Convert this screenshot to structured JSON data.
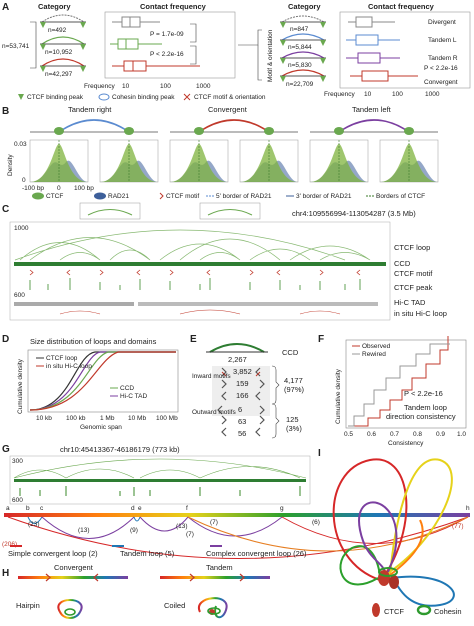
{
  "panelA": {
    "label": "A",
    "category": "Category",
    "contactFrequency": "Contact frequency",
    "total": "n=53,741",
    "counts": [
      "n=492",
      "n=10,952",
      "n=42,297"
    ],
    "pvalues": [
      "P = 1.7e-09",
      "P < 2.2e-16"
    ],
    "axisTitle": "Frequency",
    "ticks": [
      "10",
      "100",
      "1000"
    ],
    "right": {
      "axisLabel": "Motif & orientation",
      "category": "Category",
      "contactFrequency": "Contact frequency",
      "counts": [
        "n=847",
        "n=5,844",
        "n=5,830",
        "n=22,709"
      ],
      "classes": [
        "Divergent",
        "Tandem L",
        "Tandem R",
        "Convergent"
      ],
      "pvalue": "P < 2.2e-16",
      "axisTitle": "Frequency",
      "ticks": [
        "10",
        "100",
        "1000"
      ]
    },
    "legend": [
      "CTCF binding peak",
      "Cohesin binding peak",
      "CTCF motif & orientation"
    ]
  },
  "panelB": {
    "label": "B",
    "titles": [
      "Tandem right",
      "Convergent",
      "Tandem left"
    ],
    "yAxis": "Density",
    "yticks": [
      "0.03",
      "0"
    ],
    "xticks": [
      "-100 bp",
      "0",
      "100 bp"
    ],
    "legend": [
      "CTCF",
      "RAD21",
      "CTCF motif",
      "5' border of RAD21",
      "3' border of RAD21",
      "Borders of CTCF"
    ]
  },
  "panelC": {
    "label": "C",
    "region": "chr4:109556994-113054287 (3.5 Mb)",
    "scaleTop": "1000",
    "scaleBottom": "600",
    "tracks": [
      "CTCF loop",
      "CCD",
      "CTCF motif",
      "CTCF peak",
      "Hi-C TAD",
      "in situ Hi-C loop"
    ]
  },
  "panelD": {
    "label": "D",
    "title": "Size distribution of loops and domains",
    "yAxis": "Cumulative density",
    "xAxis": "Genomic span",
    "xticks": [
      "10 kb",
      "100 kb",
      "1 Mb",
      "10 Mb",
      "100 Mb"
    ],
    "legend": [
      "CTCF loop",
      "in situ Hi-C loop",
      "CCD",
      "Hi-C TAD"
    ]
  },
  "panelE": {
    "label": "E",
    "ccd": "CCD",
    "ccdCount": "2,267",
    "inward": "Inward motifs",
    "inwardCounts": [
      "3,852",
      "159",
      "166"
    ],
    "inwardTotal": "4,177",
    "inwardPct": "(97%)",
    "outward": "Outward motifs",
    "outwardCounts": [
      "6",
      "63",
      "56"
    ],
    "outwardTotal": "125",
    "outwardPct": "(3%)"
  },
  "panelF": {
    "label": "F",
    "legend": [
      "Observed",
      "Rewired"
    ],
    "yAxis": "Cumulative density",
    "pvalue": "P < 2.2e-16",
    "note": [
      "Tandem loop",
      "direction consistency"
    ],
    "xAxis": "Consistency",
    "xticks": [
      "0.5",
      "0.6",
      "0.7",
      "0.8",
      "0.9",
      "1.0"
    ]
  },
  "panelG": {
    "label": "G",
    "region": "chr10:45413367-46186179 (773 kb)",
    "scaleTop": "300",
    "scaleBottom": "600",
    "anchors": [
      "a",
      "b",
      "c",
      "d",
      "e",
      "f",
      "g",
      "h"
    ],
    "counts": [
      "(206)",
      "(23)",
      "(13)",
      "(9)",
      "(13)",
      "(7)",
      "(6)",
      "(77)",
      "(7)"
    ],
    "loopTypes": [
      "Simple convergent loop (2)",
      "Tandem loop (5)",
      "Complex convergent loop (26)"
    ]
  },
  "panelH": {
    "label": "H",
    "titles": [
      "Convergent",
      "Tandem"
    ],
    "shapes": [
      "Hairpin",
      "Coiled"
    ]
  },
  "panelI": {
    "label": "I",
    "legend": [
      "CTCF",
      "Cohesin"
    ]
  }
}
